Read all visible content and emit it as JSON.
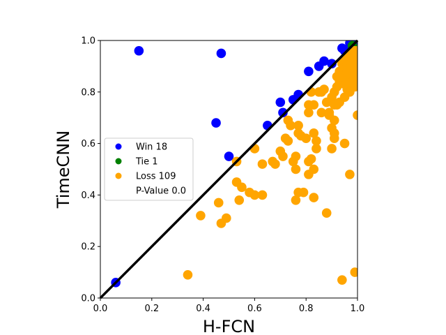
{
  "chart_data": {
    "type": "scatter",
    "xlabel": "H-FCN",
    "ylabel": "TimeCNN",
    "xlim": [
      0,
      1
    ],
    "ylim": [
      0,
      1
    ],
    "xticks": [
      "0.0",
      "0.2",
      "0.4",
      "0.6",
      "0.8",
      "1.0"
    ],
    "yticks": [
      "0.0",
      "0.2",
      "0.4",
      "0.6",
      "0.8",
      "1.0"
    ],
    "grid": false,
    "legend_position": "center-left",
    "reference_line": {
      "from": [
        0,
        0
      ],
      "to": [
        1,
        1
      ],
      "color": "#000000"
    },
    "series": [
      {
        "name": "Win 18",
        "color": "#0000ff",
        "points": [
          [
            0.06,
            0.06
          ],
          [
            0.15,
            0.96
          ],
          [
            0.47,
            0.95
          ],
          [
            0.45,
            0.68
          ],
          [
            0.5,
            0.55
          ],
          [
            0.65,
            0.67
          ],
          [
            0.7,
            0.76
          ],
          [
            0.71,
            0.72
          ],
          [
            0.75,
            0.77
          ],
          [
            0.77,
            0.79
          ],
          [
            0.81,
            0.88
          ],
          [
            0.85,
            0.9
          ],
          [
            0.87,
            0.92
          ],
          [
            0.9,
            0.91
          ],
          [
            0.94,
            0.97
          ],
          [
            0.95,
            0.96
          ],
          [
            0.97,
            0.99
          ],
          [
            0.99,
            1.0
          ]
        ]
      },
      {
        "name": "Tie 1",
        "color": "#008000",
        "points": [
          [
            0.98,
            0.98
          ]
        ]
      },
      {
        "name": "Loss 109",
        "color": "#ffa500",
        "points": [
          [
            0.34,
            0.09
          ],
          [
            0.39,
            0.32
          ],
          [
            0.46,
            0.37
          ],
          [
            0.47,
            0.29
          ],
          [
            0.49,
            0.31
          ],
          [
            0.53,
            0.45
          ],
          [
            0.53,
            0.53
          ],
          [
            0.54,
            0.38
          ],
          [
            0.55,
            0.43
          ],
          [
            0.58,
            0.41
          ],
          [
            0.6,
            0.58
          ],
          [
            0.6,
            0.4
          ],
          [
            0.63,
            0.4
          ],
          [
            0.63,
            0.52
          ],
          [
            0.67,
            0.53
          ],
          [
            0.68,
            0.52
          ],
          [
            0.7,
            0.57
          ],
          [
            0.71,
            0.55
          ],
          [
            0.72,
            0.62
          ],
          [
            0.73,
            0.69
          ],
          [
            0.73,
            0.61
          ],
          [
            0.74,
            0.67
          ],
          [
            0.75,
            0.53
          ],
          [
            0.76,
            0.55
          ],
          [
            0.76,
            0.38
          ],
          [
            0.76,
            0.5
          ],
          [
            0.77,
            0.64
          ],
          [
            0.77,
            0.67
          ],
          [
            0.77,
            0.41
          ],
          [
            0.78,
            0.63
          ],
          [
            0.79,
            0.41
          ],
          [
            0.8,
            0.62
          ],
          [
            0.81,
            0.53
          ],
          [
            0.81,
            0.72
          ],
          [
            0.81,
            0.75
          ],
          [
            0.81,
            0.48
          ],
          [
            0.82,
            0.54
          ],
          [
            0.82,
            0.8
          ],
          [
            0.83,
            0.5
          ],
          [
            0.83,
            0.39
          ],
          [
            0.83,
            0.64
          ],
          [
            0.83,
            0.75
          ],
          [
            0.84,
            0.58
          ],
          [
            0.84,
            0.61
          ],
          [
            0.85,
            0.8
          ],
          [
            0.86,
            0.72
          ],
          [
            0.86,
            0.8
          ],
          [
            0.87,
            0.81
          ],
          [
            0.88,
            0.33
          ],
          [
            0.88,
            0.76
          ],
          [
            0.89,
            0.71
          ],
          [
            0.89,
            0.72
          ],
          [
            0.9,
            0.66
          ],
          [
            0.9,
            0.58
          ],
          [
            0.9,
            0.78
          ],
          [
            0.91,
            0.8
          ],
          [
            0.91,
            0.64
          ],
          [
            0.91,
            0.62
          ],
          [
            0.91,
            0.69
          ],
          [
            0.91,
            0.75
          ],
          [
            0.92,
            0.82
          ],
          [
            0.92,
            0.75
          ],
          [
            0.92,
            0.86
          ],
          [
            0.93,
            0.88
          ],
          [
            0.93,
            0.76
          ],
          [
            0.93,
            0.84
          ],
          [
            0.94,
            0.07
          ],
          [
            0.94,
            0.88
          ],
          [
            0.94,
            0.91
          ],
          [
            0.95,
            0.6
          ],
          [
            0.95,
            0.78
          ],
          [
            0.95,
            0.83
          ],
          [
            0.95,
            0.9
          ],
          [
            0.95,
            0.92
          ],
          [
            0.96,
            0.85
          ],
          [
            0.96,
            0.88
          ],
          [
            0.96,
            0.91
          ],
          [
            0.96,
            0.94
          ],
          [
            0.97,
            0.48
          ],
          [
            0.97,
            0.86
          ],
          [
            0.97,
            0.89
          ],
          [
            0.97,
            0.92
          ],
          [
            0.97,
            0.94
          ],
          [
            0.97,
            0.95
          ],
          [
            0.98,
            0.87
          ],
          [
            0.98,
            0.9
          ],
          [
            0.98,
            0.92
          ],
          [
            0.98,
            0.94
          ],
          [
            0.98,
            0.96
          ],
          [
            0.99,
            0.1
          ],
          [
            0.99,
            0.82
          ],
          [
            0.99,
            0.86
          ],
          [
            0.99,
            0.88
          ],
          [
            0.99,
            0.9
          ],
          [
            0.99,
            0.92
          ],
          [
            0.99,
            0.94
          ],
          [
            0.99,
            0.96
          ],
          [
            1.0,
            0.71
          ],
          [
            1.0,
            0.85
          ],
          [
            1.0,
            0.88
          ],
          [
            1.0,
            0.9
          ],
          [
            1.0,
            0.92
          ],
          [
            1.0,
            0.94
          ],
          [
            1.0,
            0.96
          ],
          [
            0.96,
            0.81
          ],
          [
            0.98,
            0.84
          ],
          [
            0.94,
            0.86
          ],
          [
            0.97,
            0.8
          ],
          [
            0.99,
            0.84
          ]
        ]
      }
    ],
    "legend_entries": [
      {
        "label": "Win 18",
        "color": "#0000ff"
      },
      {
        "label": "Tie 1",
        "color": "#008000"
      },
      {
        "label": "Loss 109",
        "color": "#ffa500"
      },
      {
        "label": "P-Value 0.0",
        "color": ""
      }
    ]
  }
}
